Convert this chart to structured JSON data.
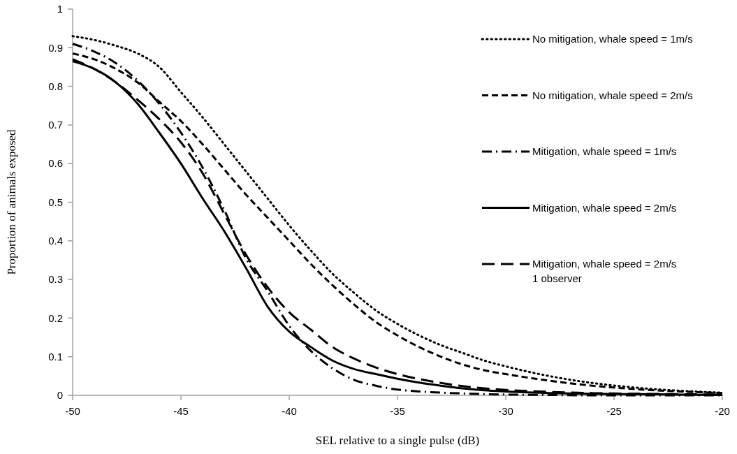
{
  "chart_data": {
    "type": "line",
    "xlabel": "SEL relative to a single pulse (dB)",
    "ylabel": "Proportion of animals exposed",
    "x": [
      -50,
      -49,
      -48,
      -47,
      -46,
      -45,
      -44,
      -43,
      -42,
      -41,
      -40,
      -39,
      -38,
      -37,
      -36,
      -35,
      -34,
      -33,
      -32,
      -31,
      -30,
      -28,
      -26,
      -24,
      -22,
      -20
    ],
    "series": [
      {
        "name": "No mitigation, whale speed = 1m/s",
        "color": "#000000",
        "line_style": "dotted",
        "values": [
          0.93,
          0.92,
          0.905,
          0.885,
          0.85,
          0.785,
          0.72,
          0.65,
          0.58,
          0.51,
          0.44,
          0.375,
          0.315,
          0.265,
          0.22,
          0.185,
          0.155,
          0.13,
          0.11,
          0.09,
          0.075,
          0.05,
          0.032,
          0.02,
          0.012,
          0.007
        ]
      },
      {
        "name": "No mitigation, whale speed = 2m/s",
        "color": "#000000",
        "line_style": "dashed",
        "values": [
          0.885,
          0.87,
          0.845,
          0.81,
          0.76,
          0.71,
          0.65,
          0.585,
          0.52,
          0.46,
          0.4,
          0.34,
          0.285,
          0.235,
          0.19,
          0.155,
          0.125,
          0.1,
          0.08,
          0.065,
          0.055,
          0.038,
          0.025,
          0.016,
          0.01,
          0.006
        ]
      },
      {
        "name": "Mitigation, whale speed = 1m/s",
        "color": "#000000",
        "line_style": "dashdot",
        "values": [
          0.91,
          0.89,
          0.86,
          0.815,
          0.755,
          0.68,
          0.59,
          0.48,
          0.355,
          0.27,
          0.18,
          0.115,
          0.07,
          0.04,
          0.025,
          0.015,
          0.01,
          0.007,
          0.005,
          0.003,
          0.002,
          0.001,
          0,
          0,
          0,
          0
        ]
      },
      {
        "name": "Mitigation, whale speed = 2m/s",
        "color": "#000000",
        "line_style": "solid",
        "values": [
          0.865,
          0.845,
          0.81,
          0.755,
          0.68,
          0.6,
          0.51,
          0.425,
          0.33,
          0.23,
          0.165,
          0.125,
          0.09,
          0.068,
          0.055,
          0.043,
          0.033,
          0.025,
          0.018,
          0.013,
          0.01,
          0.006,
          0.004,
          0.003,
          0.002,
          0.001
        ]
      },
      {
        "name": "Mitigation, whale speed = 2m/s\n1 observer",
        "color": "#000000",
        "line_style": "longdash",
        "values": [
          0.87,
          0.845,
          0.81,
          0.765,
          0.715,
          0.655,
          0.575,
          0.47,
          0.365,
          0.28,
          0.215,
          0.17,
          0.125,
          0.095,
          0.072,
          0.055,
          0.042,
          0.032,
          0.024,
          0.018,
          0.014,
          0.009,
          0.006,
          0.004,
          0.003,
          0.002
        ]
      }
    ],
    "xlim": [
      -50,
      -20
    ],
    "xticks": [
      -50,
      -45,
      -40,
      -35,
      -30,
      -25,
      -20
    ],
    "ylim": [
      0,
      1
    ],
    "yticks": [
      0,
      0.1,
      0.2,
      0.3,
      0.4,
      0.5,
      0.6,
      0.7,
      0.8,
      0.9,
      1
    ],
    "grid": false,
    "legend": "right",
    "marker": "none"
  }
}
